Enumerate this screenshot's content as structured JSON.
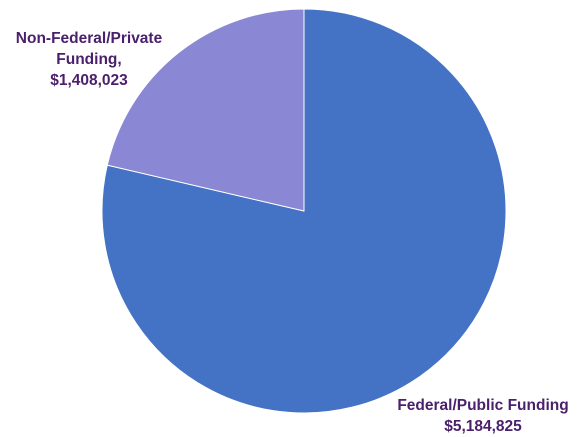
{
  "chart_data": {
    "type": "pie",
    "title": "",
    "slices": [
      {
        "name_lines": [
          "Federal/Public Funding"
        ],
        "value_label": "$5,184,825",
        "value": 5184825,
        "color": "#4472c4"
      },
      {
        "name_lines": [
          "Non-Federal/Private",
          "Funding,"
        ],
        "value_label": "$1,408,023",
        "value": 1408023,
        "color": "#8a87d4"
      }
    ],
    "legend": "none",
    "label_color": "#4a1f6b"
  }
}
